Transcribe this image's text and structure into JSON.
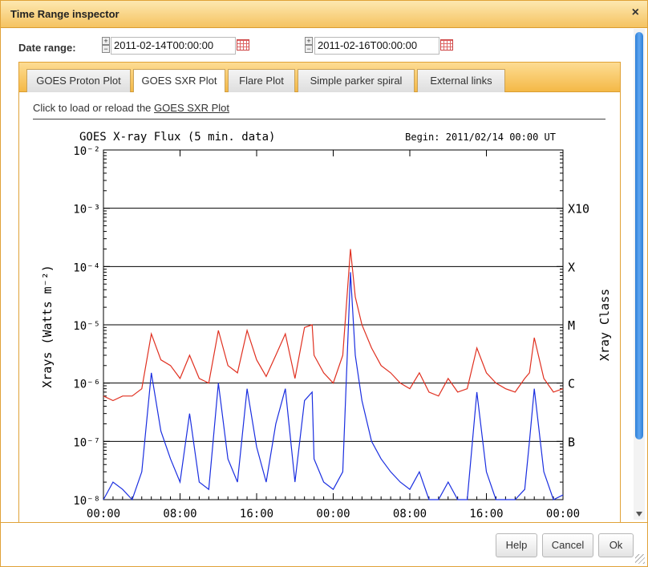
{
  "window": {
    "title": "Time Range inspector",
    "close_glyph": "×"
  },
  "date_range": {
    "label": "Date range:",
    "start": "2011-02-14T00:00:00",
    "end": "2011-02-16T00:00:00",
    "plus": "+",
    "minus": "−"
  },
  "tabs": [
    {
      "label": "GOES Proton Plot"
    },
    {
      "label": "GOES SXR Plot"
    },
    {
      "label": "Flare Plot"
    },
    {
      "label": "Simple parker spiral"
    },
    {
      "label": "External links"
    }
  ],
  "active_tab": "GOES SXR Plot",
  "content": {
    "load_text": "Click to load or reload the",
    "load_link": "GOES SXR Plot"
  },
  "chart_data": {
    "type": "line",
    "title": "GOES X-ray Flux (5 min. data)",
    "subtitle": "Begin: 2011/02/14 00:00 UT",
    "ylabel": "Xrays (Watts m⁻²)",
    "ylabel_right": "Xray Class",
    "yscale": "log",
    "ylim": [
      1e-08,
      0.01
    ],
    "y_tick_labels": [
      "10⁻⁸",
      "10⁻⁷",
      "10⁻⁶",
      "10⁻⁵",
      "10⁻⁴",
      "10⁻³",
      "10⁻²"
    ],
    "class_labels": [
      "B",
      "C",
      "M",
      "X",
      "X10"
    ],
    "x_tick_labels": [
      "00:00",
      "08:00",
      "16:00",
      "00:00",
      "08:00",
      "16:00",
      "00:00"
    ],
    "x_unit": "hours from begin",
    "xlim": [
      0,
      48
    ],
    "grid_lines_at": [
      1e-07,
      1e-06,
      1e-05,
      0.0001,
      0.001
    ],
    "series": [
      {
        "color": "#e03020",
        "x": [
          0,
          1,
          2,
          3,
          4,
          5,
          6,
          7,
          8,
          9,
          10,
          11,
          12,
          13,
          14,
          15,
          16,
          17,
          18,
          19,
          20,
          21,
          21.8,
          22,
          23,
          24,
          25,
          25.8,
          26.3,
          27,
          28,
          29,
          30,
          31,
          32,
          33,
          34,
          35,
          36,
          37,
          38,
          39,
          40,
          41,
          42,
          43,
          44,
          44.5,
          45,
          46,
          47,
          48
        ],
        "values": [
          6e-07,
          5e-07,
          6e-07,
          6e-07,
          8e-07,
          7e-06,
          2.5e-06,
          2e-06,
          1.2e-06,
          3e-06,
          1.2e-06,
          1e-06,
          8e-06,
          2e-06,
          1.5e-06,
          8e-06,
          2.5e-06,
          1.3e-06,
          3e-06,
          7e-06,
          1.2e-06,
          9e-06,
          1e-05,
          3e-06,
          1.5e-06,
          1e-06,
          3e-06,
          0.0002,
          3e-05,
          1e-05,
          4e-06,
          2e-06,
          1.5e-06,
          1e-06,
          8e-07,
          1.5e-06,
          7e-07,
          6e-07,
          1.2e-06,
          7e-07,
          8e-07,
          4e-06,
          1.5e-06,
          1e-06,
          8e-07,
          7e-07,
          1.2e-06,
          1.5e-06,
          6e-06,
          1.2e-06,
          7e-07,
          8e-07
        ]
      },
      {
        "color": "#1a2ee0",
        "x": [
          0,
          1,
          2,
          3,
          4,
          5,
          6,
          7,
          8,
          9,
          10,
          11,
          12,
          13,
          14,
          15,
          16,
          17,
          18,
          19,
          20,
          21,
          21.8,
          22,
          23,
          24,
          25,
          25.8,
          26.3,
          27,
          28,
          29,
          30,
          31,
          32,
          33,
          34,
          35,
          36,
          37,
          38,
          39,
          40,
          41,
          42,
          43,
          44,
          44.5,
          45,
          46,
          47,
          48
        ],
        "values": [
          1e-08,
          2e-08,
          1.5e-08,
          1e-08,
          3e-08,
          1.5e-06,
          1.5e-07,
          5e-08,
          2e-08,
          3e-07,
          2e-08,
          1.5e-08,
          1e-06,
          5e-08,
          2e-08,
          8e-07,
          8e-08,
          2e-08,
          2e-07,
          8e-07,
          2e-08,
          5e-07,
          7e-07,
          5e-08,
          2e-08,
          1.5e-08,
          3e-08,
          8e-05,
          3e-06,
          5e-07,
          1e-07,
          5e-08,
          3e-08,
          2e-08,
          1.5e-08,
          3e-08,
          1e-08,
          1e-08,
          2e-08,
          1e-08,
          1e-08,
          7e-07,
          3e-08,
          1e-08,
          1e-08,
          1e-08,
          1.5e-08,
          1e-07,
          8e-07,
          3e-08,
          1e-08,
          1.2e-08
        ]
      }
    ]
  },
  "buttons": {
    "help": "Help",
    "cancel": "Cancel",
    "ok": "Ok"
  }
}
